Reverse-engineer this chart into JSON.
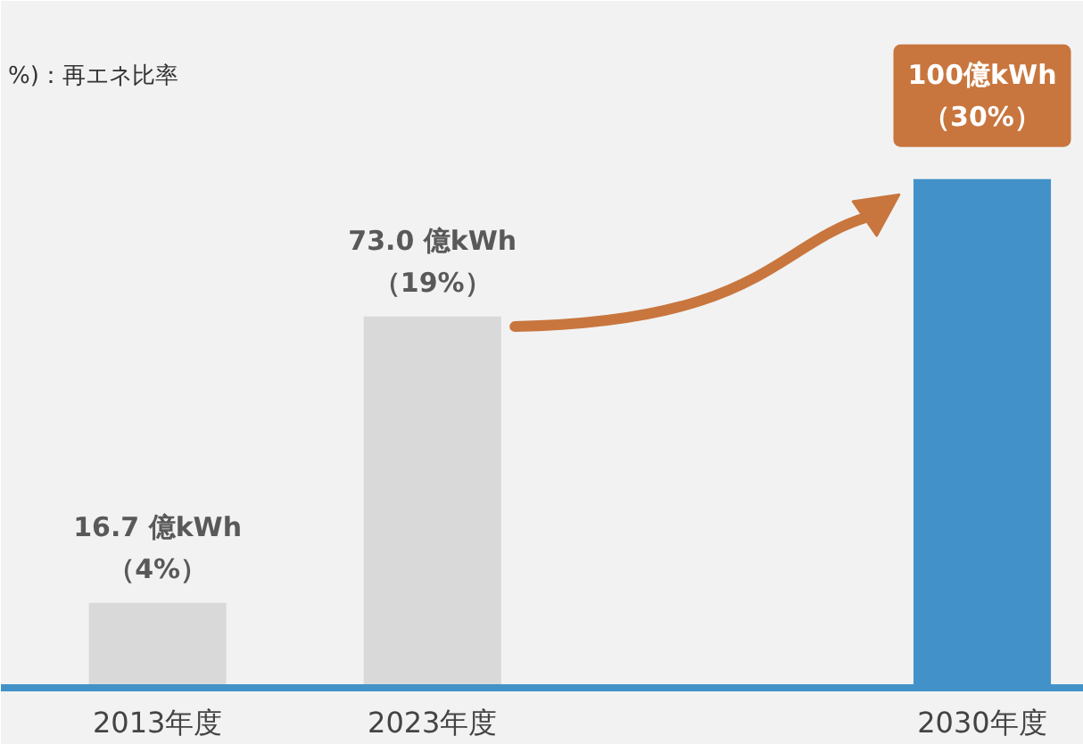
{
  "chart_data": {
    "type": "bar",
    "categories": [
      "2013年度",
      "2023年度",
      null,
      "2030年度"
    ],
    "values": [
      16.7,
      73.0,
      null,
      100
    ],
    "colors": [
      "#d9d9d9",
      "#d9d9d9",
      "#d9d9d9",
      "#4292c9"
    ],
    "value_labels": [
      "16.7 億kWh\n（4%）",
      "73.0 億kWh\n（19%）",
      null,
      "100億kWh\n（30%）"
    ],
    "ylim": [
      0,
      135
    ],
    "tick_labels": "x",
    "grid": false,
    "annotations": [
      "%)：再エネ比率"
    ]
  }
}
